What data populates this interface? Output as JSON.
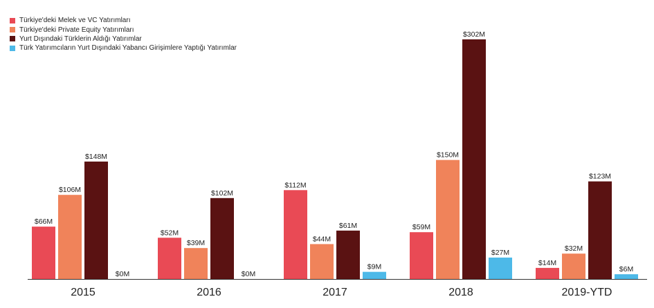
{
  "chart_data": {
    "type": "bar",
    "categories": [
      "2015",
      "2016",
      "2017",
      "2018",
      "2019-YTD"
    ],
    "series": [
      {
        "name": "Türkiye'deki Melek ve VC Yatırımları",
        "color": "#e94a55",
        "values": [
          66,
          52,
          112,
          59,
          14
        ],
        "labels": [
          "$66M",
          "$52M",
          "$112M",
          "$59M",
          "$14M"
        ]
      },
      {
        "name": "Türkiye'deki Private Equity Yatırımları",
        "color": "#f0835a",
        "values": [
          106,
          39,
          44,
          150,
          32
        ],
        "labels": [
          "$106M",
          "$39M",
          "$44M",
          "$150M",
          "$32M"
        ]
      },
      {
        "name": "Yurt Dışındaki Türklerin Aldığı Yatırımlar",
        "color": "#5a1212",
        "values": [
          148,
          102,
          61,
          302,
          123
        ],
        "labels": [
          "$148M",
          "$102M",
          "$61M",
          "$302M",
          "$123M"
        ]
      },
      {
        "name": "Türk Yatırımcıların Yurt Dışındaki Yabancı Girişimlere Yaptığı Yatırımlar",
        "color": "#4db9e8",
        "values": [
          0,
          0,
          9,
          27,
          6
        ],
        "labels": [
          "$0M",
          "$0M",
          "$9M",
          "$27M",
          "$6M"
        ]
      }
    ],
    "ylim": [
      0,
      302
    ],
    "grid": false,
    "legend_position": "top-left"
  }
}
